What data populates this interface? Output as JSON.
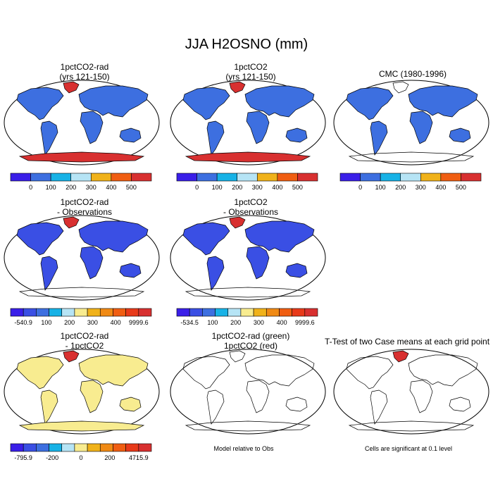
{
  "title": "JJA H2OSNO (mm)",
  "panels": [
    {
      "id": "p1",
      "title1": "1pctCO2-rad",
      "title2": "(yrs 121-150)",
      "fill": "#3d6fe0",
      "antarctica": "#d83030",
      "greenland": "#d83030",
      "ocean": "#ffffff"
    },
    {
      "id": "p2",
      "title1": "1pctCO2",
      "title2": "(yrs 121-150)",
      "fill": "#3d6fe0",
      "antarctica": "#d83030",
      "greenland": "#d83030",
      "ocean": "#ffffff"
    },
    {
      "id": "p3",
      "title1": "CMC (1980-1996)",
      "title2": "",
      "fill": "#3d6fe0",
      "antarctica": "none",
      "greenland": "#ffffff",
      "ocean": "#ffffff"
    },
    {
      "id": "p4",
      "title1": "1pctCO2-rad",
      "title2": "- Observations",
      "fill": "#3a4fe4",
      "antarctica": "none",
      "greenland": "#d83030",
      "ocean": "#ffffff"
    },
    {
      "id": "p5",
      "title1": "1pctCO2",
      "title2": "- Observations",
      "fill": "#3a4fe4",
      "antarctica": "none",
      "greenland": "#d83030",
      "ocean": "#ffffff"
    },
    {
      "id": "p6",
      "title1": "1pctCO2-rad",
      "title2": "- 1pctCO2",
      "fill": "#f8ec90",
      "antarctica": "#f8ec90",
      "greenland": "#d83030",
      "ocean": "#ffffff"
    },
    {
      "id": "p7",
      "title1": "1pctCO2-rad (green)",
      "title2": "1pctCO2 (red)",
      "fill": "none",
      "antarctica": "none",
      "greenland": "none",
      "ocean": "#ffffff"
    },
    {
      "id": "p8",
      "title1": "T-Test of two Case means at each grid point",
      "title2": "",
      "fill": "none",
      "antarctica": "none",
      "greenland": "#d83030",
      "ocean": "#ffffff"
    }
  ],
  "colorbars": [
    {
      "id": "cb1",
      "colors": [
        "#3a1fe8",
        "#3d6fe0",
        "#17b2e6",
        "#b6e4f5",
        "#f0b21a",
        "#f05e12",
        "#d83030"
      ],
      "labels": [
        "0",
        "100",
        "200",
        "300",
        "400",
        "500"
      ]
    },
    {
      "id": "cb2",
      "colors": [
        "#3a1fe8",
        "#3d6fe0",
        "#17b2e6",
        "#b6e4f5",
        "#f0b21a",
        "#f05e12",
        "#d83030"
      ],
      "labels": [
        "0",
        "100",
        "200",
        "300",
        "400",
        "500"
      ]
    },
    {
      "id": "cb3",
      "colors": [
        "#3a1fe8",
        "#3d6fe0",
        "#17b2e6",
        "#b6e4f5",
        "#f0b21a",
        "#f05e12",
        "#d83030"
      ],
      "labels": [
        "0",
        "100",
        "200",
        "300",
        "400",
        "500"
      ]
    },
    {
      "id": "cb4",
      "colors": [
        "#3a1fe8",
        "#3a4fe4",
        "#3d6fe0",
        "#17b2e6",
        "#b6e4f5",
        "#f8ec90",
        "#f0b21a",
        "#f08a14",
        "#f05e12",
        "#e83a1a",
        "#d83030"
      ],
      "labels": [
        "-540.9",
        "100",
        "200",
        "300",
        "400",
        "9999.6"
      ]
    },
    {
      "id": "cb5",
      "colors": [
        "#3a1fe8",
        "#3a4fe4",
        "#3d6fe0",
        "#17b2e6",
        "#b6e4f5",
        "#f8ec90",
        "#f0b21a",
        "#f08a14",
        "#f05e12",
        "#e83a1a",
        "#d83030"
      ],
      "labels": [
        "-534.5",
        "100",
        "200",
        "300",
        "400",
        "9999.6"
      ]
    },
    {
      "id": "cb6",
      "colors": [
        "#3a1fe8",
        "#3a4fe4",
        "#3d6fe0",
        "#17b2e6",
        "#b6e4f5",
        "#f8ec90",
        "#f0b21a",
        "#f08a14",
        "#f05e12",
        "#e83a1a",
        "#d83030"
      ],
      "labels": [
        "-795.9",
        "-200",
        "0",
        "200",
        "4715.9"
      ]
    }
  ],
  "notes": {
    "model_rel": "Model relative to Obs",
    "cells_sig": "Cells are significant at 0.1 level"
  }
}
